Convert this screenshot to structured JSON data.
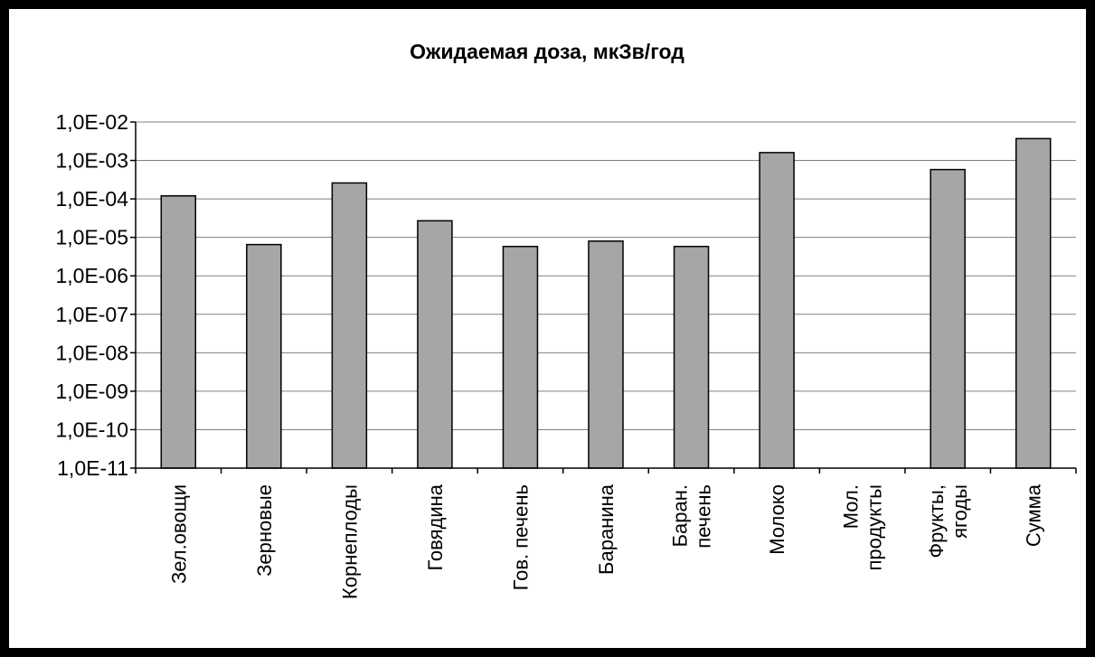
{
  "chart_data": {
    "type": "bar",
    "title": "Ожидаемая доза, мкЗв/год",
    "xlabel": "",
    "ylabel": "",
    "yscale": "log",
    "ylim": [
      1e-11,
      0.01
    ],
    "grid": true,
    "legend": "none",
    "bar_color": "#a6a6a6",
    "ytick_labels": [
      "1,0E-02",
      "1,0E-03",
      "1,0E-04",
      "1,0E-05",
      "1,0E-06",
      "1,0E-07",
      "1,0E-08",
      "1,0E-09",
      "1,0E-10",
      "1,0E-11"
    ],
    "categories": [
      [
        "Зел.овощи"
      ],
      [
        "Зерновые"
      ],
      [
        "Корнеплоды"
      ],
      [
        "Говядина"
      ],
      [
        "Гов. печень"
      ],
      [
        "Баранина"
      ],
      [
        "Баран.",
        "печень"
      ],
      [
        "Молоко"
      ],
      [
        "Мол.",
        "продукты"
      ],
      [
        "Фрукты,",
        "ягоды"
      ],
      [
        "Сумма"
      ]
    ],
    "values": [
      0.00012,
      6.5e-06,
      0.00026,
      2.7e-05,
      5.8e-06,
      8e-06,
      5.8e-06,
      0.0016,
      null,
      0.00058,
      0.0037
    ]
  }
}
